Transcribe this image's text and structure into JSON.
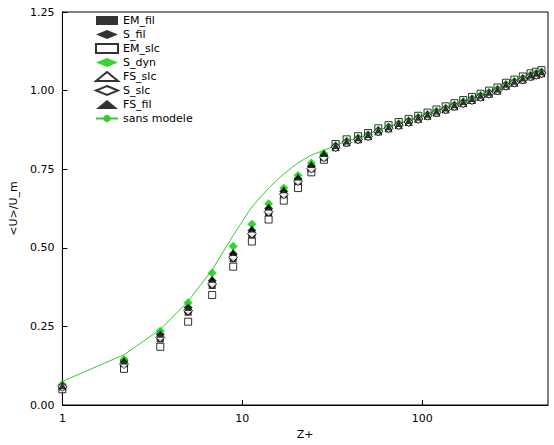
{
  "chart_data": {
    "type": "scatter",
    "x_label": "Z+",
    "y_label": "<U>/U_m",
    "log": "x",
    "grid": false,
    "legend": "upper left",
    "xlim": [
      1,
      500
    ],
    "xticks": [
      1,
      10,
      100
    ],
    "ylim": [
      0,
      1.25
    ],
    "yticks": [
      {
        "value": 0,
        "label": "0.00"
      },
      {
        "value": 0.25,
        "label": "0.25"
      },
      {
        "value": 0.5,
        "label": "0.50"
      },
      {
        "value": 0.75,
        "label": "0.75"
      },
      {
        "value": 1,
        "label": "1.00"
      },
      {
        "value": 1.25,
        "label": "1.25"
      }
    ],
    "x": [
      1.0,
      2.2,
      3.5,
      5.0,
      6.8,
      8.9,
      11.3,
      14.0,
      17.0,
      20.4,
      24.2,
      28.4,
      33,
      38,
      44,
      50,
      57,
      65,
      74,
      84,
      95,
      107,
      120,
      135,
      151,
      169,
      189,
      211,
      235,
      262,
      292,
      325,
      362,
      400,
      430,
      460
    ],
    "series": [
      {
        "name": "EM_fil",
        "type": "scatter",
        "marker": "square",
        "color": "#000000",
        "values": [
          0.055,
          0.13,
          0.21,
          0.295,
          0.38,
          0.465,
          0.54,
          0.61,
          0.665,
          0.71,
          0.75,
          0.785,
          0.82,
          0.835,
          0.845,
          0.855,
          0.87,
          0.88,
          0.89,
          0.9,
          0.91,
          0.92,
          0.93,
          0.94,
          0.95,
          0.96,
          0.97,
          0.98,
          0.99,
          1.0,
          1.015,
          1.025,
          1.035,
          1.045,
          1.05,
          1.055
        ]
      },
      {
        "name": "S_fil",
        "type": "scatter",
        "marker": "diamond",
        "color": "#000000",
        "values": [
          0.06,
          0.14,
          0.225,
          0.31,
          0.395,
          0.48,
          0.555,
          0.625,
          0.68,
          0.72,
          0.76,
          0.795,
          0.82,
          0.835,
          0.845,
          0.855,
          0.87,
          0.88,
          0.89,
          0.9,
          0.91,
          0.92,
          0.93,
          0.94,
          0.95,
          0.96,
          0.97,
          0.98,
          0.99,
          1.0,
          1.015,
          1.025,
          1.035,
          1.045,
          1.05,
          1.055
        ]
      },
      {
        "name": "EM_slc",
        "type": "scatter",
        "marker": "square-open",
        "color": "#000000",
        "values": [
          0.05,
          0.115,
          0.185,
          0.265,
          0.35,
          0.44,
          0.52,
          0.59,
          0.65,
          0.69,
          0.74,
          0.78,
          0.83,
          0.845,
          0.855,
          0.865,
          0.88,
          0.89,
          0.9,
          0.91,
          0.92,
          0.93,
          0.94,
          0.95,
          0.96,
          0.97,
          0.98,
          0.99,
          1.0,
          1.01,
          1.025,
          1.035,
          1.045,
          1.055,
          1.06,
          1.065
        ]
      },
      {
        "name": "S_dyn",
        "type": "scatter",
        "marker": "diamond",
        "color": "#00cc00",
        "values": [
          0.065,
          0.145,
          0.235,
          0.325,
          0.42,
          0.505,
          0.575,
          0.64,
          0.69,
          0.73,
          0.77,
          0.8,
          0.825,
          0.84,
          0.85,
          0.86,
          0.875,
          0.885,
          0.895,
          0.905,
          0.915,
          0.925,
          0.935,
          0.945,
          0.955,
          0.965,
          0.975,
          0.985,
          0.995,
          1.005,
          1.02,
          1.03,
          1.04,
          1.05,
          1.055,
          1.06
        ]
      },
      {
        "name": "FS_slc",
        "type": "scatter",
        "marker": "triangle-open",
        "color": "#000000",
        "values": [
          0.06,
          0.135,
          0.22,
          0.305,
          0.39,
          0.475,
          0.55,
          0.62,
          0.675,
          0.715,
          0.755,
          0.79,
          0.82,
          0.835,
          0.845,
          0.855,
          0.87,
          0.88,
          0.89,
          0.9,
          0.91,
          0.92,
          0.93,
          0.94,
          0.95,
          0.96,
          0.97,
          0.98,
          0.99,
          1.0,
          1.015,
          1.025,
          1.035,
          1.045,
          1.05,
          1.055
        ]
      },
      {
        "name": "S_slc",
        "type": "scatter",
        "marker": "diamond-open",
        "color": "#000000",
        "values": [
          0.058,
          0.13,
          0.215,
          0.3,
          0.385,
          0.47,
          0.545,
          0.615,
          0.67,
          0.712,
          0.752,
          0.788,
          0.82,
          0.835,
          0.845,
          0.855,
          0.87,
          0.88,
          0.89,
          0.9,
          0.91,
          0.92,
          0.93,
          0.94,
          0.95,
          0.96,
          0.97,
          0.98,
          0.99,
          1.0,
          1.015,
          1.025,
          1.035,
          1.045,
          1.05,
          1.055
        ]
      },
      {
        "name": "FS_fil",
        "type": "scatter",
        "marker": "triangle",
        "color": "#000000",
        "values": [
          0.062,
          0.14,
          0.225,
          0.31,
          0.4,
          0.485,
          0.56,
          0.63,
          0.685,
          0.725,
          0.765,
          0.8,
          0.825,
          0.84,
          0.85,
          0.86,
          0.875,
          0.885,
          0.895,
          0.905,
          0.915,
          0.925,
          0.935,
          0.945,
          0.955,
          0.965,
          0.975,
          0.985,
          0.995,
          1.005,
          1.02,
          1.03,
          1.04,
          1.05,
          1.055,
          1.06
        ]
      },
      {
        "name": "sans modele",
        "type": "line",
        "line_style": "solid",
        "color": "#33cc33",
        "values": [
          0.075,
          0.16,
          0.24,
          0.33,
          0.43,
          0.54,
          0.63,
          0.69,
          0.735,
          0.77,
          0.795,
          0.81,
          0.825,
          0.84,
          0.85,
          0.86,
          0.875,
          0.885,
          0.895,
          0.905,
          0.915,
          0.925,
          0.935,
          0.945,
          0.955,
          0.965,
          0.975,
          0.985,
          0.995,
          1.005,
          1.02,
          1.03,
          1.04,
          1.05,
          1.055,
          1.06
        ]
      }
    ]
  }
}
